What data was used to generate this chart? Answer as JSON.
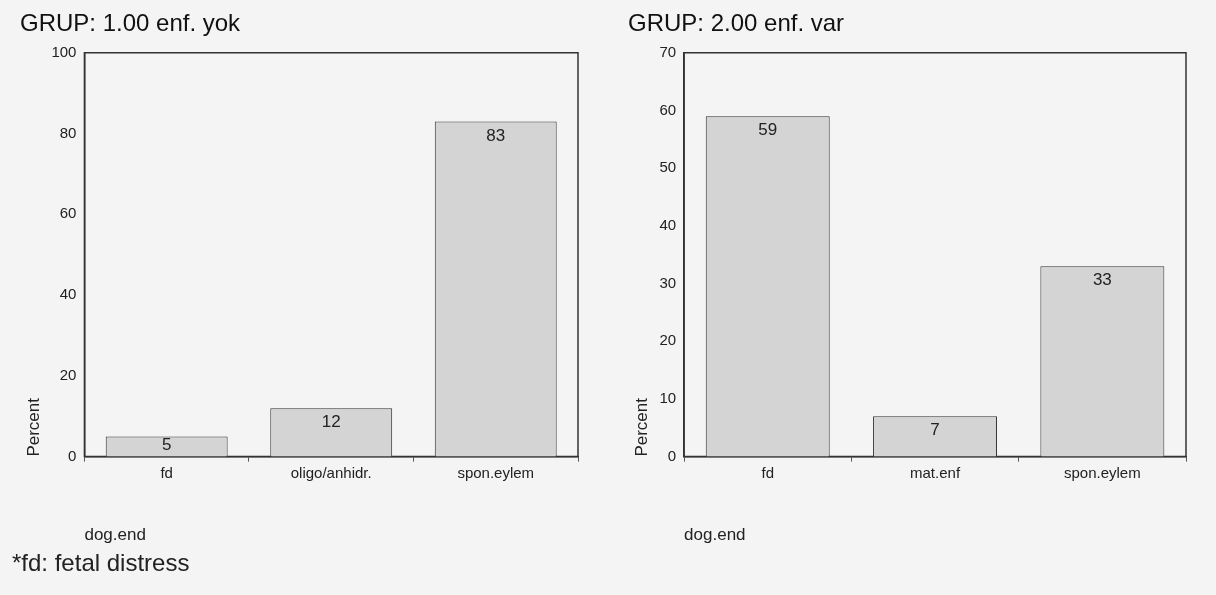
{
  "chart_data": [
    {
      "type": "bar",
      "title": "GRUP: 1.00 enf. yok",
      "xlabel": "dog.end",
      "ylabel": "Percent",
      "categories": [
        "fd",
        "oligo/anhidr.",
        "spon.eylem"
      ],
      "values": [
        5,
        12,
        83
      ],
      "color": "#d4d4d4",
      "ylim": [
        0,
        100
      ],
      "yticks": [
        0,
        20,
        40,
        60,
        80,
        100
      ],
      "grid": false,
      "legend": false,
      "data_labels": true,
      "annotations": [
        "*fd: fetal distress"
      ]
    },
    {
      "type": "bar",
      "title": "GRUP: 2.00 enf. var",
      "xlabel": "dog.end",
      "ylabel": "Percent",
      "categories": [
        "fd",
        "mat.enf",
        "spon.eylem"
      ],
      "values": [
        59,
        7,
        33
      ],
      "color": "#d4d4d4",
      "ylim": [
        0,
        70
      ],
      "yticks": [
        0,
        10,
        20,
        30,
        40,
        50,
        60,
        70
      ],
      "grid": false,
      "legend": false,
      "data_labels": true
    }
  ]
}
